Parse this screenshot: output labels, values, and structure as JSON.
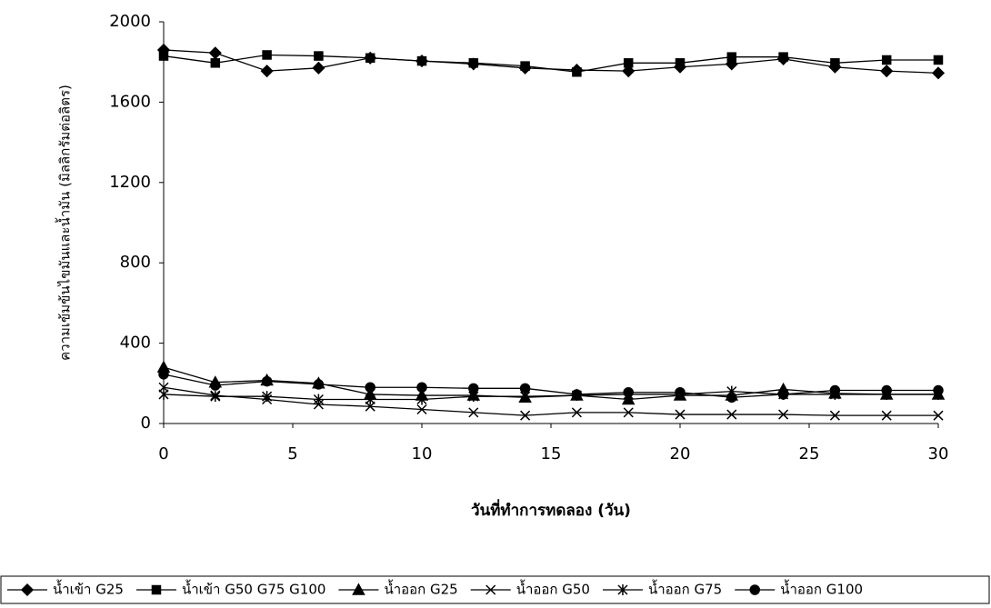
{
  "chart_data": {
    "type": "line",
    "xlabel": "วันที่ทำการทดลอง (วัน)",
    "ylabel": "ความเข้มข้นไขมันและน้ำมัน  (มิลลิกรัมต่อลิตร)",
    "x": [
      0,
      2,
      4,
      6,
      8,
      10,
      12,
      14,
      16,
      18,
      20,
      22,
      24,
      26,
      28,
      30
    ],
    "xlim": [
      0,
      30
    ],
    "xticks": [
      0,
      5,
      10,
      15,
      20,
      25,
      30
    ],
    "ylim": [
      0,
      2000
    ],
    "yticks": [
      0,
      400,
      800,
      1200,
      1600,
      2000
    ],
    "grid": false,
    "legend": "bottom",
    "series": [
      {
        "name": "น้ำเข้า G25",
        "color": "#000000",
        "marker": "diamond",
        "values": [
          1860,
          1845,
          1755,
          1770,
          1820,
          1805,
          1790,
          1770,
          1760,
          1755,
          1775,
          1790,
          1815,
          1775,
          1755,
          1745
        ]
      },
      {
        "name": "น้ำเข้า G50 G75 G100",
        "color": "#000000",
        "marker": "square",
        "values": [
          1830,
          1795,
          1835,
          1830,
          1820,
          1805,
          1795,
          1780,
          1750,
          1795,
          1795,
          1825,
          1825,
          1795,
          1810,
          1810
        ]
      },
      {
        "name": "น้ำออก G25",
        "color": "#000000",
        "marker": "triangle",
        "values": [
          280,
          205,
          215,
          200,
          145,
          140,
          140,
          130,
          140,
          120,
          140,
          140,
          170,
          150,
          145,
          145
        ]
      },
      {
        "name": "น้ำออก G50",
        "color": "#000000",
        "marker": "x",
        "values": [
          180,
          140,
          120,
          95,
          85,
          70,
          55,
          40,
          55,
          55,
          45,
          45,
          45,
          40,
          40,
          40
        ]
      },
      {
        "name": "น้ำออก G75",
        "color": "#000000",
        "marker": "star",
        "values": [
          145,
          135,
          135,
          120,
          120,
          120,
          135,
          135,
          140,
          145,
          145,
          160,
          145,
          145,
          145,
          145
        ]
      },
      {
        "name": "น้ำออก G100",
        "color": "#000000",
        "marker": "circle",
        "values": [
          245,
          190,
          210,
          195,
          180,
          180,
          175,
          175,
          145,
          155,
          155,
          130,
          145,
          165,
          165,
          165
        ]
      }
    ]
  }
}
